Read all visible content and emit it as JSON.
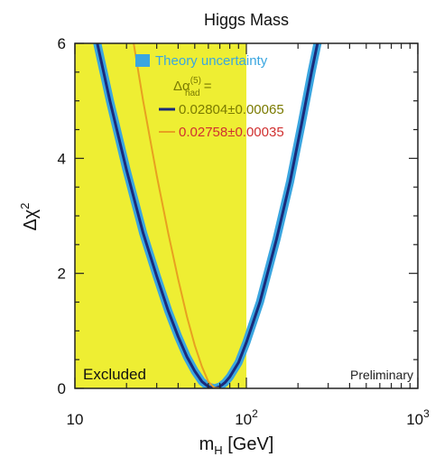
{
  "chart_data": {
    "type": "line",
    "title": "Higgs Mass",
    "xlabel": "m_H [GeV]",
    "xlabel_main": "m",
    "xlabel_sub": "H",
    "xlabel_unit": " [GeV]",
    "ylabel": "Δχ²",
    "ylabel_main": "Δχ",
    "ylabel_sup": "2",
    "x_scale": "log",
    "xlim": [
      10,
      1000
    ],
    "ylim": [
      0,
      6
    ],
    "x_ticks": [
      {
        "base": "10",
        "exp": "",
        "value": 10
      },
      {
        "base": "10",
        "exp": "2",
        "value": 100
      },
      {
        "base": "10",
        "exp": "3",
        "value": 1000
      }
    ],
    "y_ticks": [
      0,
      2,
      4,
      6
    ],
    "excluded_region": {
      "x_from": 10,
      "x_to": 100,
      "label": "Excluded",
      "color": "#eeee33"
    },
    "preliminary_label": "Preliminary",
    "legend": {
      "theory_label": "Theory uncertainty",
      "alpha_label": "Δα",
      "alpha_sup": "(5)",
      "alpha_sub": "had",
      "alpha_suffix": " =",
      "entries": [
        {
          "label": "0.02804±0.00065",
          "color": "#1a2a7a"
        },
        {
          "label": "0.02758±0.00035",
          "color": "#e8a020"
        }
      ]
    },
    "series": [
      {
        "role": "theory-band",
        "color": "#3aa6e0",
        "x": [
          13.5,
          16,
          20,
          25,
          30,
          35,
          40,
          45,
          50,
          55,
          60,
          65,
          70,
          75,
          80,
          90,
          100,
          120,
          150,
          180,
          210,
          240,
          260
        ],
        "y": [
          6.0,
          5.0,
          3.8,
          2.7,
          1.95,
          1.35,
          0.9,
          0.55,
          0.3,
          0.12,
          0.03,
          0.0,
          0.03,
          0.1,
          0.2,
          0.45,
          0.8,
          1.5,
          2.6,
          3.6,
          4.6,
          5.5,
          6.0
        ]
      },
      {
        "role": "fit-curve",
        "color": "#1a2a7a",
        "x": [
          13.5,
          16,
          20,
          25,
          30,
          35,
          40,
          45,
          50,
          55,
          60,
          65,
          70,
          75,
          80,
          90,
          100,
          120,
          150,
          180,
          210,
          240,
          260
        ],
        "y": [
          6.0,
          5.0,
          3.8,
          2.7,
          1.95,
          1.35,
          0.9,
          0.55,
          0.3,
          0.12,
          0.03,
          0.0,
          0.03,
          0.1,
          0.2,
          0.45,
          0.8,
          1.5,
          2.6,
          3.6,
          4.6,
          5.5,
          6.0
        ]
      },
      {
        "role": "alternative-curve",
        "color": "#e8a020",
        "x": [
          22,
          25,
          30,
          35,
          40,
          45,
          50,
          55,
          60,
          65,
          70
        ],
        "y": [
          6.0,
          5.0,
          3.7,
          2.7,
          1.9,
          1.25,
          0.75,
          0.38,
          0.12,
          0.01,
          0.0
        ]
      }
    ],
    "colors": {
      "excluded": "#eeee33",
      "band": "#3aa6e0",
      "curve": "#1a2a7a",
      "alt_curve": "#e8a020",
      "alpha_label": "#7a7a00",
      "entry2_text": "#d03030"
    }
  }
}
